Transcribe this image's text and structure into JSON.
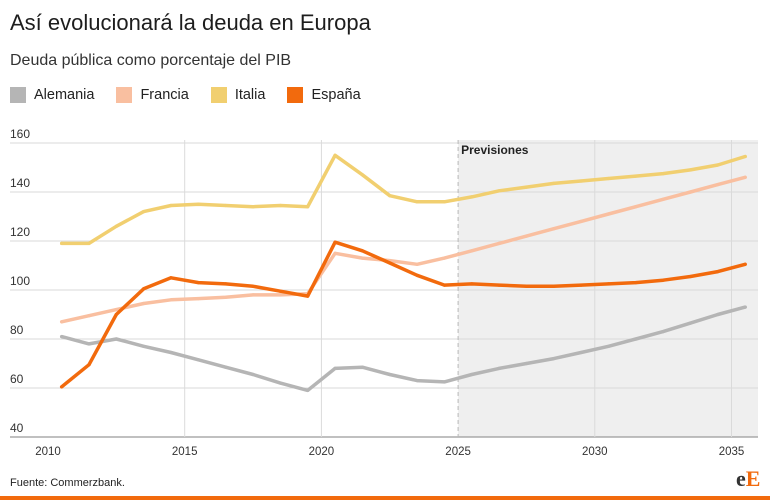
{
  "chart_data": {
    "type": "line",
    "title": "Así evolucionará la deuda en Europa",
    "subtitle": "Deuda pública como porcentaje del PIB",
    "x": [
      2010,
      2011,
      2012,
      2013,
      2014,
      2015,
      2016,
      2017,
      2018,
      2019,
      2020,
      2021,
      2022,
      2023,
      2024,
      2025,
      2026,
      2027,
      2028,
      2029,
      2030,
      2031,
      2032,
      2033,
      2034,
      2035
    ],
    "xticks": [
      2010,
      2015,
      2020,
      2025,
      2030,
      2035
    ],
    "yticks": [
      40,
      60,
      80,
      100,
      120,
      140,
      160
    ],
    "ylim": [
      40,
      160
    ],
    "grid": true,
    "legend": "top-left",
    "forecast_start": 2025,
    "forecast_label": "Previsiones",
    "series": [
      {
        "name": "Alemania",
        "color": "#b5b5b5",
        "values": [
          81,
          78,
          80,
          77,
          74.5,
          71.5,
          68.5,
          65.5,
          62,
          59,
          68,
          68.5,
          65.5,
          63,
          62.5,
          65.5,
          68,
          70,
          72,
          74.5,
          77,
          80,
          83,
          86.5,
          90,
          93
        ]
      },
      {
        "name": "Francia",
        "color": "#f9bfa0",
        "values": [
          87,
          89.5,
          92,
          94.5,
          96,
          96.5,
          97,
          98,
          98,
          98.5,
          115,
          113,
          112,
          110.5,
          113,
          116,
          119,
          122,
          125,
          128,
          131,
          134,
          137,
          140,
          143,
          146
        ]
      },
      {
        "name": "Italia",
        "color": "#f1cf70",
        "values": [
          119,
          119,
          126,
          132,
          134.5,
          135,
          134.5,
          134,
          134.5,
          134,
          155,
          147,
          138.5,
          136,
          136,
          138,
          140.5,
          142,
          143.5,
          144.5,
          145.5,
          146.5,
          147.5,
          149,
          151,
          154.5
        ]
      },
      {
        "name": "España",
        "color": "#f26a0d",
        "values": [
          60.5,
          69.5,
          90,
          100.5,
          105,
          103,
          102.5,
          101.5,
          99.5,
          97.5,
          119.5,
          116,
          111,
          106,
          102,
          102.5,
          102,
          101.5,
          101.5,
          102,
          102.5,
          103,
          104,
          105.5,
          107.5,
          110.5
        ]
      }
    ]
  },
  "source": "Fuente: Commerzbank.",
  "logo": {
    "first": "e",
    "second": "E"
  },
  "colors": {
    "accent": "#f26a0d",
    "forecast_band": "#efefef"
  }
}
